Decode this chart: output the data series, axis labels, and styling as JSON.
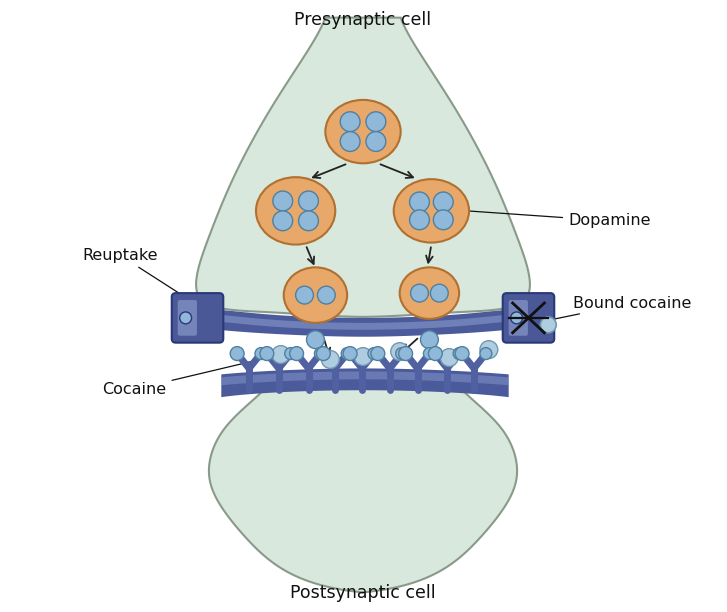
{
  "title_pre": "Presynaptic cell",
  "title_post": "Postsynaptic cell",
  "label_dopamine": "Dopamine",
  "label_reuptake": "Reuptake",
  "label_bound_cocaine": "Bound cocaine",
  "label_cocaine": "Cocaine",
  "bg_color": "#ffffff",
  "cell_fill_pre": "#d8e8dc",
  "cell_fill_post": "#d8e8dc",
  "cell_stroke": "#8a9a8a",
  "membrane_dark": "#4a5a9a",
  "membrane_mid": "#6878b8",
  "membrane_light": "#8898cc",
  "vesicle_fill": "#e8a86a",
  "vesicle_stroke": "#b07030",
  "dopamine_fill": "#90b8d8",
  "dopamine_stroke": "#5080a0",
  "cocaine_fill": "#b0cce0",
  "cocaine_stroke": "#7098b0",
  "transporter_fill": "#4a5898",
  "transporter_light": "#8898c8",
  "transporter_stroke": "#2a3878",
  "receptor_fill": "#5060a0",
  "receptor_stroke": "#303870",
  "arrow_color": "#222222",
  "text_color": "#111111",
  "font_size": 11.5
}
